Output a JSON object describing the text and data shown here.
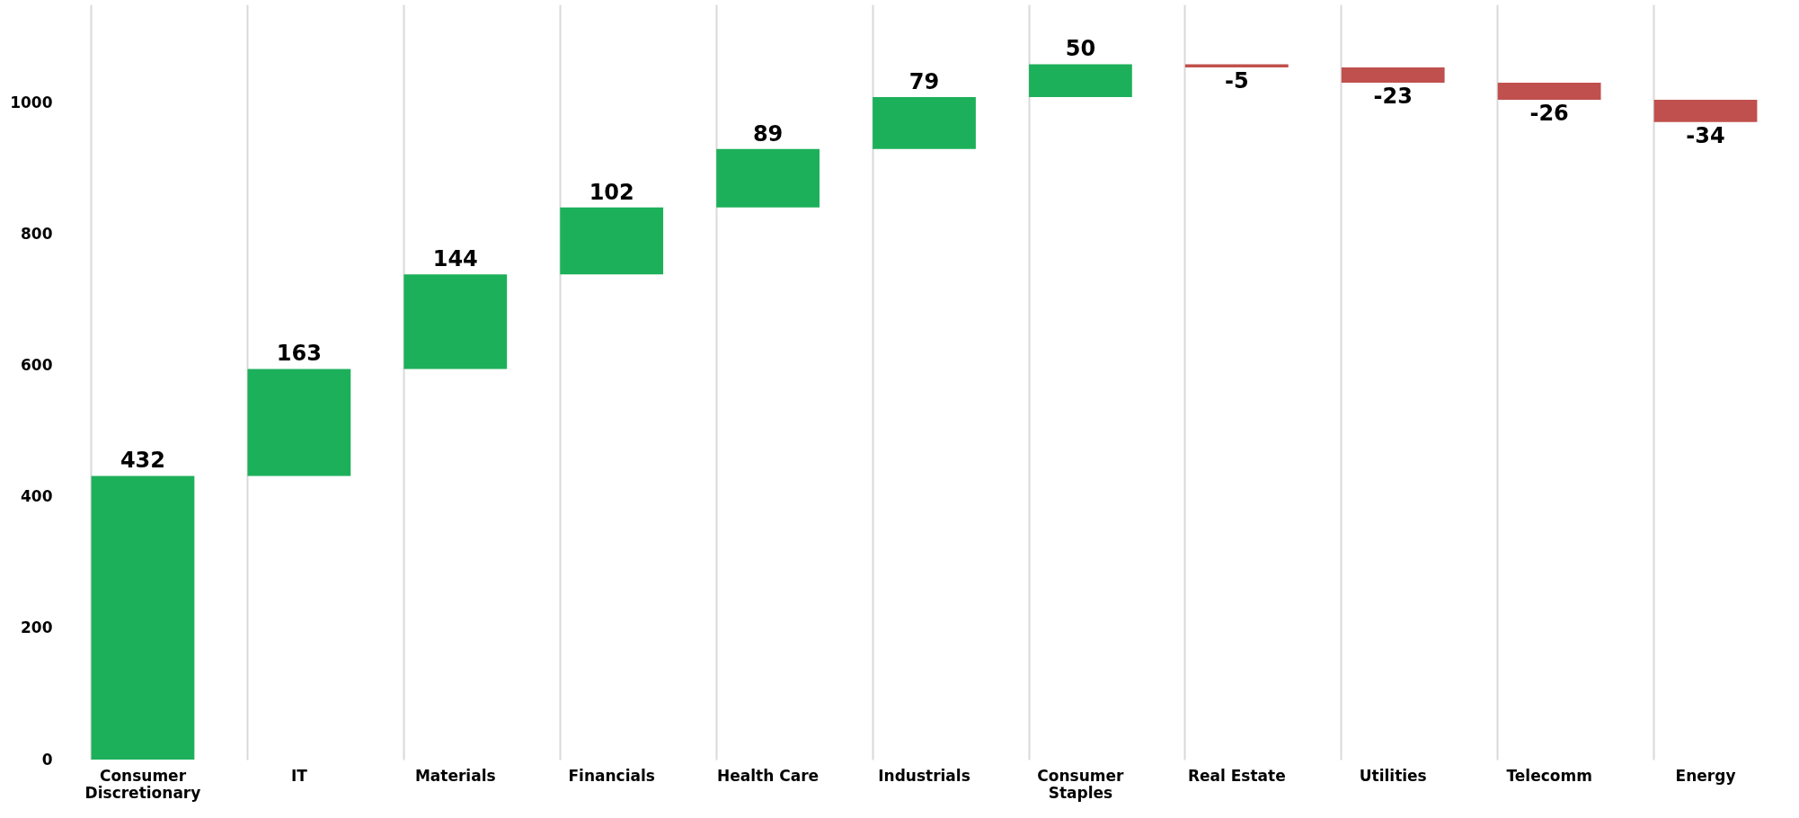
{
  "chart_data": {
    "type": "bar",
    "categories": [
      "Consumer Discretionary",
      "IT",
      "Materials",
      "Financials",
      "Health Care",
      "Industrials",
      "Consumer Staples",
      "Real Estate",
      "Utilities",
      "Telecomm",
      "Energy"
    ],
    "values": [
      432,
      163,
      144,
      102,
      89,
      79,
      50,
      -5,
      -23,
      -26,
      -34
    ],
    "base": [
      0,
      432,
      595,
      739,
      841,
      930,
      1009,
      1059,
      1054,
      1031,
      1005
    ],
    "colors": [
      "#1db05a",
      "#1db05a",
      "#1db05a",
      "#1db05a",
      "#1db05a",
      "#1db05a",
      "#1db05a",
      "#c0504d",
      "#c0504d",
      "#c0504d",
      "#c0504d"
    ],
    "ylim": [
      0,
      1150
    ],
    "yticks": [
      0,
      200,
      400,
      600,
      800,
      1000
    ],
    "grid": "x",
    "data_labels": true
  }
}
